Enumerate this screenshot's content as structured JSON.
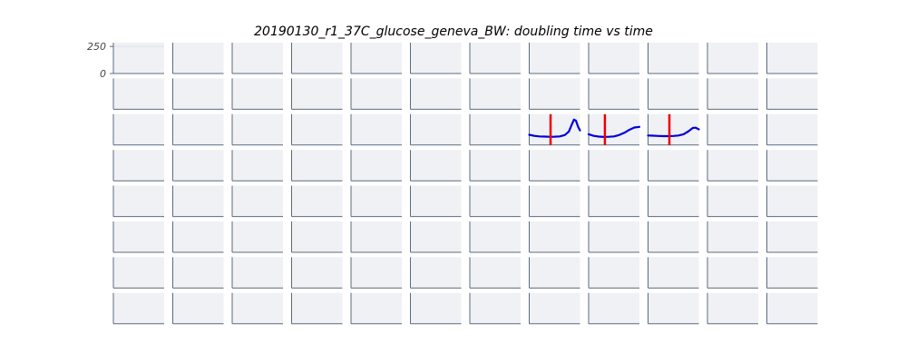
{
  "chart_data": {
    "type": "line",
    "title": "20190130_r1_37C_glucose_geneva_BW: doubling time vs time",
    "grid": {
      "rows": 8,
      "cols": 12
    },
    "ylim": [
      0,
      285
    ],
    "yticks": [
      {
        "value": 250,
        "label": "250"
      },
      {
        "value": 0,
        "label": "0"
      }
    ],
    "colors": {
      "panel_bg": "#eff1f5",
      "axis": "#5c6b80",
      "line": "#0000dd",
      "marker": "#ee0000",
      "grid_line": "#dde1e8"
    },
    "series": [
      {
        "row": 2,
        "col": 7,
        "x": [
          0,
          0.1,
          0.2,
          0.3,
          0.4,
          0.5,
          0.6,
          0.7,
          0.78,
          0.84,
          0.88,
          0.92,
          0.96,
          1.0
        ],
        "y": [
          95,
          85,
          80,
          78,
          76,
          77,
          80,
          92,
          125,
          190,
          235,
          225,
          170,
          135
        ],
        "marker_x": 0.42
      },
      {
        "row": 2,
        "col": 8,
        "x": [
          0,
          0.1,
          0.2,
          0.3,
          0.4,
          0.5,
          0.6,
          0.7,
          0.8,
          0.9,
          1.0
        ],
        "y": [
          100,
          85,
          78,
          75,
          76,
          80,
          92,
          112,
          140,
          162,
          168
        ],
        "marker_x": 0.32
      },
      {
        "row": 2,
        "col": 9,
        "x": [
          0,
          0.1,
          0.2,
          0.3,
          0.4,
          0.5,
          0.6,
          0.7,
          0.8,
          0.88,
          0.94,
          0.97,
          1.0
        ],
        "y": [
          88,
          86,
          84,
          82,
          82,
          84,
          88,
          100,
          128,
          158,
          160,
          152,
          145
        ],
        "marker_x": 0.42
      }
    ]
  }
}
